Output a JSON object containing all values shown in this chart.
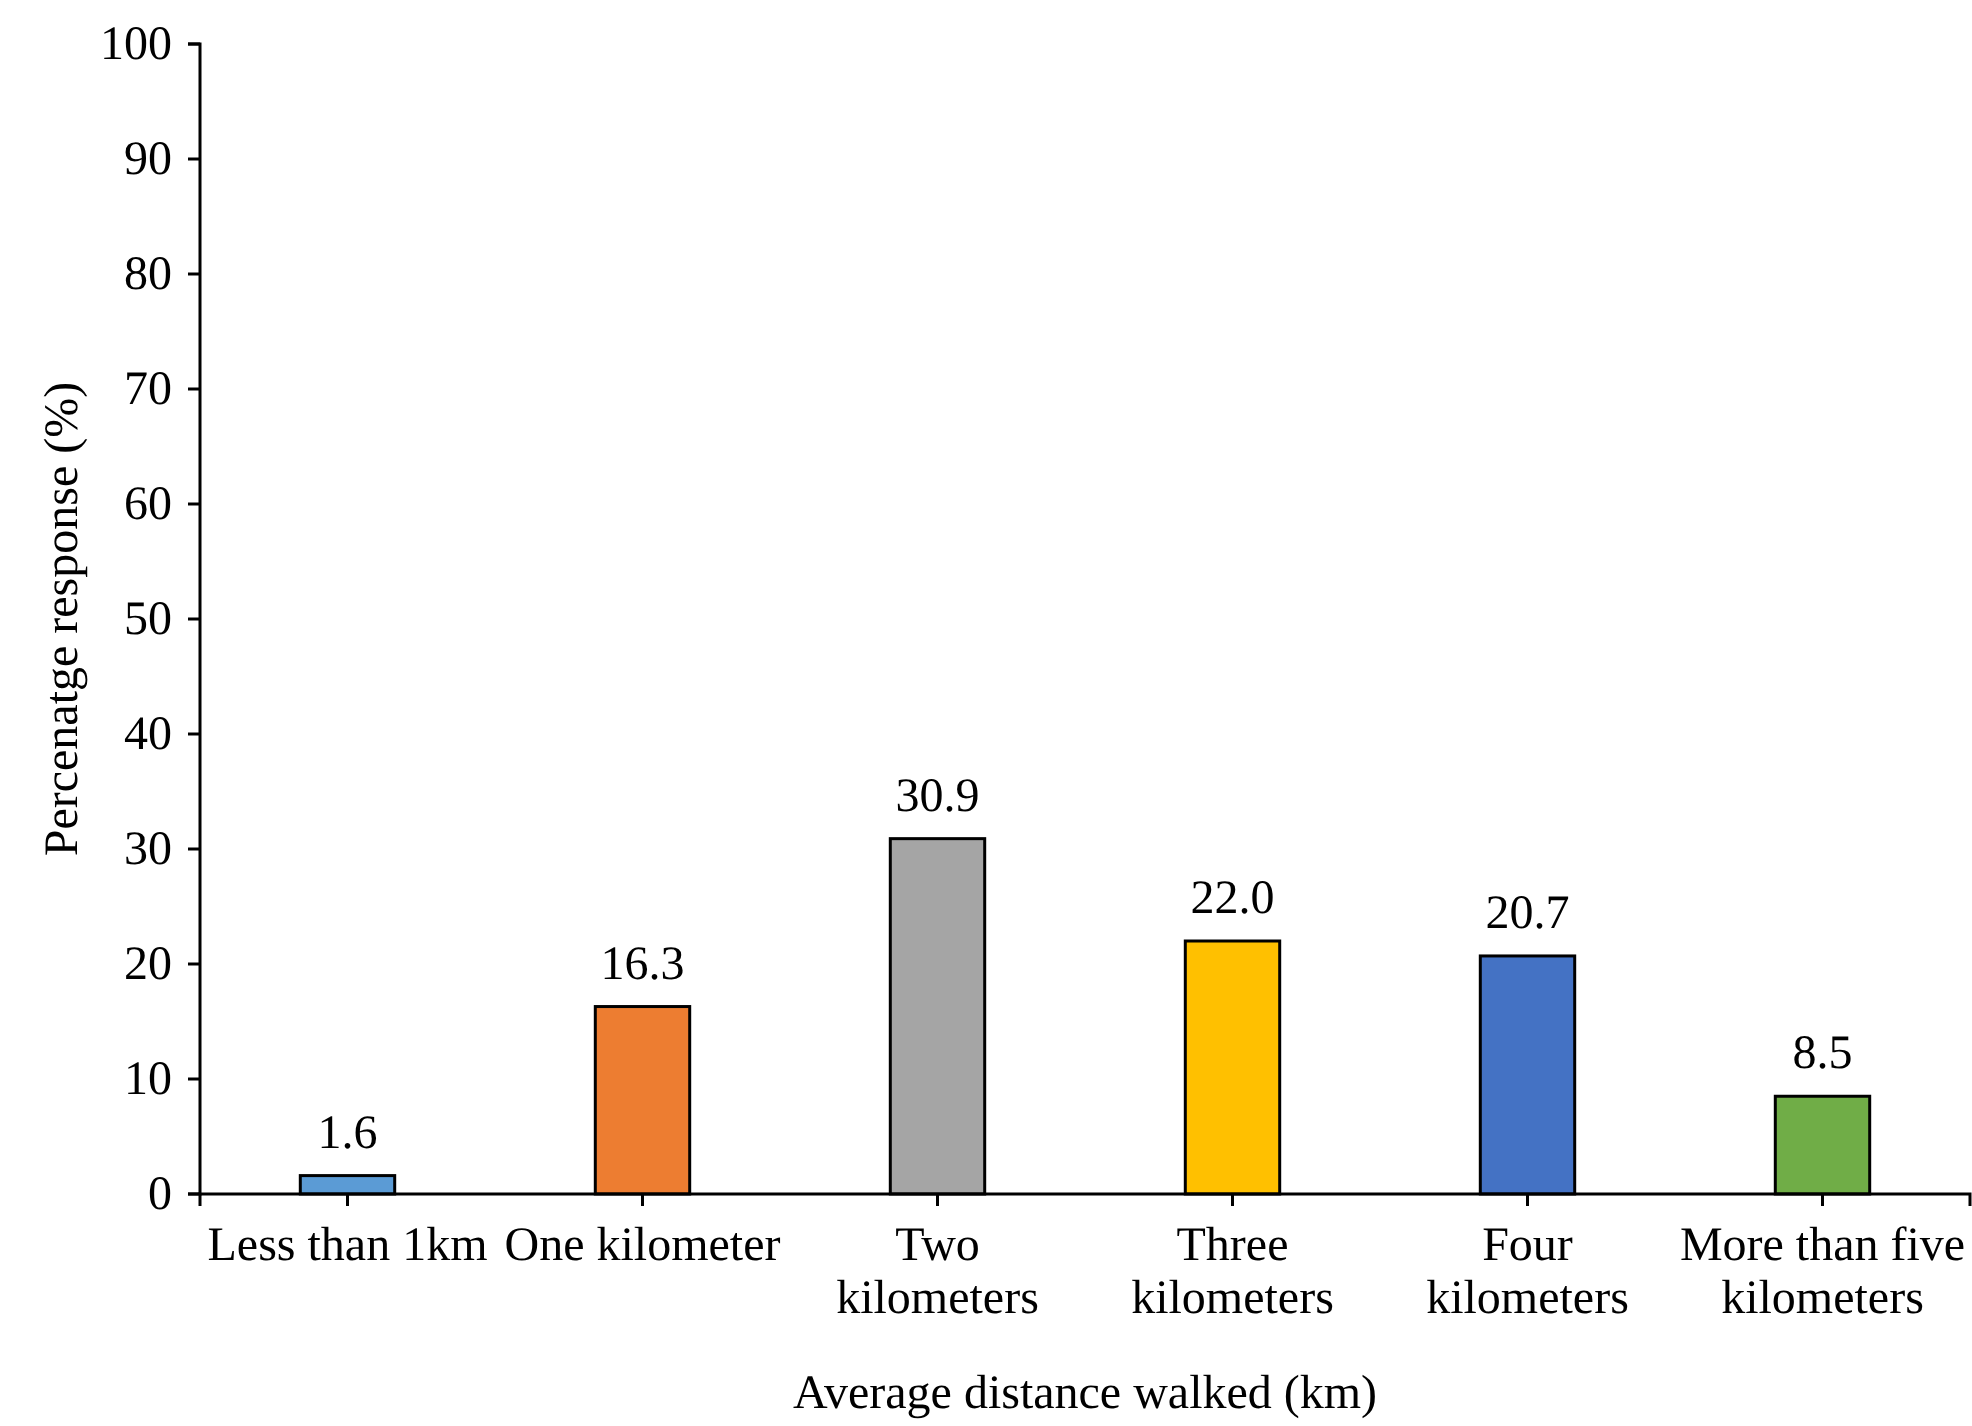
{
  "chart_data": {
    "type": "bar",
    "categories": [
      "Less than 1km",
      "One kilometer",
      "Two kilometers",
      "Three kilometers",
      "Four kilometers",
      "More than five kilometers"
    ],
    "values": [
      1.6,
      16.3,
      30.9,
      22.0,
      20.7,
      8.5
    ],
    "value_labels": [
      "1.6",
      "16.3",
      "30.9",
      "22.0",
      "20.7",
      "8.5"
    ],
    "colors": [
      "#5b9bd5",
      "#ed7d31",
      "#a5a5a5",
      "#ffc000",
      "#4472c4",
      "#70ad47"
    ],
    "ylim": [
      0,
      100
    ],
    "yticks": [
      0,
      10,
      20,
      30,
      40,
      50,
      60,
      70,
      80,
      90,
      100
    ],
    "xlabel": "Average distance walked (km)",
    "ylabel": "Percenatge response (%)"
  }
}
